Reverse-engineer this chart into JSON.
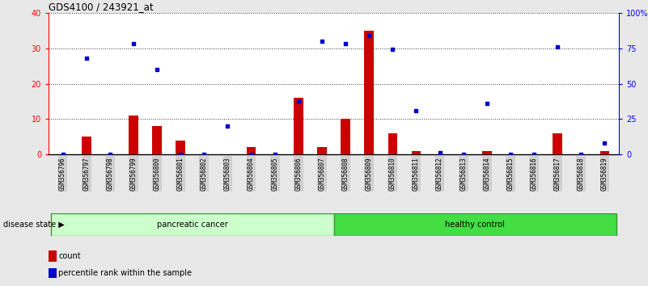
{
  "title": "GDS4100 / 243921_at",
  "samples": [
    "GSM356796",
    "GSM356797",
    "GSM356798",
    "GSM356799",
    "GSM356800",
    "GSM356801",
    "GSM356802",
    "GSM356803",
    "GSM356804",
    "GSM356805",
    "GSM356806",
    "GSM356807",
    "GSM356808",
    "GSM356809",
    "GSM356810",
    "GSM356811",
    "GSM356812",
    "GSM356813",
    "GSM356814",
    "GSM356815",
    "GSM356816",
    "GSM356817",
    "GSM356818",
    "GSM356819"
  ],
  "count": [
    0,
    5,
    0,
    11,
    8,
    4,
    0,
    0,
    2,
    0,
    16,
    2,
    10,
    35,
    6,
    1,
    0,
    0,
    1,
    0,
    0,
    6,
    0,
    1
  ],
  "percentile": [
    0,
    68,
    0,
    78,
    60,
    0,
    0,
    20,
    0,
    0,
    38,
    80,
    78,
    84,
    74,
    31,
    1,
    0,
    36,
    0,
    0,
    76,
    0,
    8
  ],
  "groups": [
    {
      "label": "pancreatic cancer",
      "start": 0,
      "end": 12,
      "color": "#ccffcc",
      "edge": "#339933"
    },
    {
      "label": "healthy control",
      "start": 12,
      "end": 24,
      "color": "#44dd44",
      "edge": "#339933"
    }
  ],
  "bar_color": "#cc0000",
  "dot_color": "#0000cc",
  "ylim_left": [
    0,
    40
  ],
  "ylim_right": [
    0,
    100
  ],
  "yticks_left": [
    0,
    10,
    20,
    30,
    40
  ],
  "yticks_right": [
    0,
    25,
    50,
    75,
    100
  ],
  "ytick_labels_right": [
    "0",
    "25",
    "50",
    "75",
    "100%"
  ],
  "background_color": "#e8e8e8",
  "plot_bg": "#ffffff",
  "tick_bg": "#d0d0d0",
  "disease_state_label": "disease state",
  "legend_count_label": "count",
  "legend_pct_label": "percentile rank within the sample",
  "figsize": [
    8.01,
    3.54
  ],
  "dpi": 100
}
